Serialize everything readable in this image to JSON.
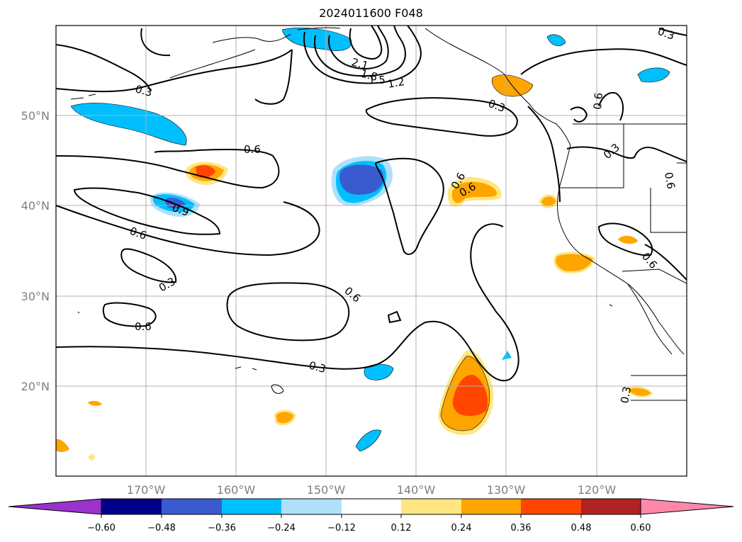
{
  "title": "2024011600 F048",
  "map": {
    "projection": "lat-lon",
    "lon_range": [
      -180,
      -110
    ],
    "lat_range": [
      10,
      60
    ],
    "lat_ticks": [
      "20°N",
      "30°N",
      "40°N",
      "50°N"
    ],
    "lon_ticks": [
      "170°W",
      "160°W",
      "150°W",
      "140°W",
      "130°W",
      "120°W"
    ],
    "grid": true
  },
  "contour_labels": [
    "0.3",
    "0.6",
    "0.9",
    "0.6",
    "0.3",
    "0.6",
    "0.6",
    "0.3",
    "2.1",
    "1.8",
    "1.5",
    "1.2",
    "0.3",
    "0.6",
    "0.6",
    "0.6",
    "0.3",
    "0.6",
    "0.6",
    "0.3",
    "0.3"
  ],
  "colorbar": {
    "tick_labels": [
      "−0.60",
      "−0.48",
      "−0.36",
      "−0.24",
      "−0.12",
      "0.12",
      "0.24",
      "0.36",
      "0.48",
      "0.60"
    ],
    "colors": [
      "#9933cc",
      "#00008b",
      "#3a5bd0",
      "#00bfff",
      "#aee0fa",
      "#ffffff",
      "#ffe680",
      "#ffa500",
      "#ff4500",
      "#b22222",
      "#ff88aa"
    ],
    "extend": "both"
  }
}
